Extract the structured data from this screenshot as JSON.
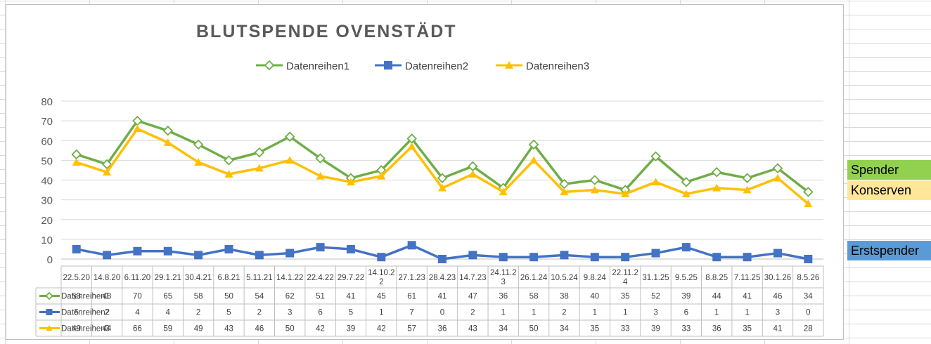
{
  "chart_data": {
    "type": "line",
    "title": "BLUTSPENDE OVENSTÄDT",
    "categories": [
      "22.5.20",
      "14.8.20",
      "6.11.20",
      "29.1.21",
      "30.4.21",
      "6.8.21",
      "5.11.21",
      "14.1.22",
      "22.4.22",
      "29.7.22",
      "14.10.22",
      "27.1.23",
      "28.4.23",
      "14.7.23",
      "24.11.23",
      "26.1.24",
      "10.5.24",
      "9.8.24",
      "22.11.24",
      "31.1.25",
      "9.5.25",
      "8.8.25",
      "7.11.25",
      "30.1.26",
      "8.5.26"
    ],
    "category_display": [
      "22.5.20",
      "14.8.20",
      "6.11.20",
      "29.1.21",
      "30.4.21",
      "6.8.21",
      "5.11.21",
      "14.1.22",
      "22.4.22",
      "29.7.22",
      "14.10.2|2",
      "27.1.23",
      "28.4.23",
      "14.7.23",
      "24.11.2|3",
      "26.1.24",
      "10.5.24",
      "9.8.24",
      "22.11.2|4",
      "31.1.25",
      "9.5.25",
      "8.8.25",
      "7.11.25",
      "30.1.26",
      "8.5.26"
    ],
    "series": [
      {
        "name": "Datenreihen1",
        "color": "#70ad47",
        "marker": "diamond-open",
        "values": [
          53,
          48,
          70,
          65,
          58,
          50,
          54,
          62,
          51,
          41,
          45,
          61,
          41,
          47,
          36,
          58,
          38,
          40,
          35,
          52,
          39,
          44,
          41,
          46,
          34
        ]
      },
      {
        "name": "Datenreihen2",
        "color": "#4472c4",
        "marker": "square",
        "values": [
          5,
          2,
          4,
          4,
          2,
          5,
          2,
          3,
          6,
          5,
          1,
          7,
          0,
          2,
          1,
          1,
          2,
          1,
          1,
          3,
          6,
          1,
          1,
          3,
          0
        ]
      },
      {
        "name": "Datenreihen3",
        "color": "#ffc000",
        "marker": "triangle",
        "values": [
          49,
          44,
          66,
          59,
          49,
          43,
          46,
          50,
          42,
          39,
          42,
          57,
          36,
          43,
          34,
          50,
          34,
          35,
          33,
          39,
          33,
          36,
          35,
          41,
          28
        ]
      }
    ],
    "ylim": [
      0,
      80
    ],
    "yticks": [
      0,
      10,
      20,
      30,
      40,
      50,
      60,
      70,
      80
    ],
    "grid": true,
    "legend": "top",
    "data_table": true
  },
  "side_labels": {
    "spender": "Spender",
    "konserven": "Konserven",
    "erstspender": "Erstspender"
  }
}
